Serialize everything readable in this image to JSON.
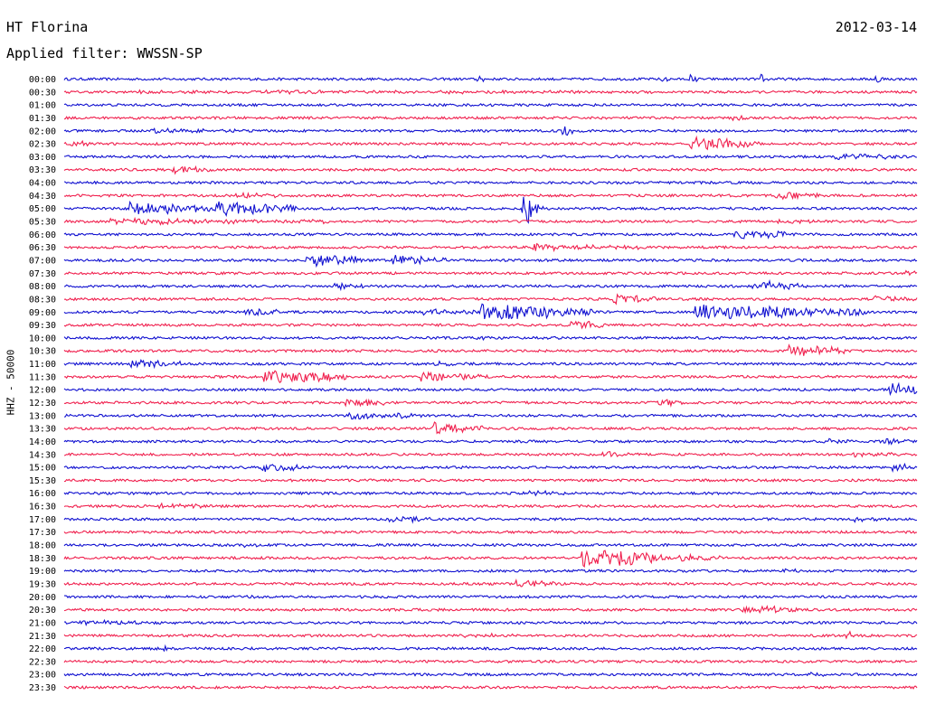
{
  "header": {
    "station": "HT Florina",
    "date": "2012-03-14",
    "filter": "Applied filter: WWSSN-SP"
  },
  "chart_data": {
    "type": "line",
    "title": "HT Florina",
    "subtitle": "Applied filter: WWSSN-SP",
    "date": "2012-03-14",
    "ylabel": "HHZ - 50000",
    "row_interval_minutes": 30,
    "row_labels": [
      "00:00",
      "00:30",
      "01:00",
      "01:30",
      "02:00",
      "02:30",
      "03:00",
      "03:30",
      "04:00",
      "04:30",
      "05:00",
      "05:30",
      "06:00",
      "06:30",
      "07:00",
      "07:30",
      "08:00",
      "08:30",
      "09:00",
      "09:30",
      "10:00",
      "10:30",
      "11:00",
      "11:30",
      "12:00",
      "12:30",
      "13:00",
      "13:30",
      "14:00",
      "14:30",
      "15:00",
      "15:30",
      "16:00",
      "16:30",
      "17:00",
      "17:30",
      "18:00",
      "18:30",
      "19:00",
      "19:30",
      "20:00",
      "20:30",
      "21:00",
      "21:30",
      "22:00",
      "22:30",
      "23:00",
      "23:30"
    ],
    "colors": {
      "even_rows": "#1010d0",
      "odd_rows": "#f0204e"
    },
    "grid": false,
    "events": [
      {
        "row": 0,
        "minute": 14.5,
        "amplitude": 0.8,
        "duration": 0.3
      },
      {
        "row": 0,
        "minute": 21,
        "amplitude": 0.6,
        "duration": 0.3
      },
      {
        "row": 0,
        "minute": 22,
        "amplitude": 0.9,
        "duration": 0.3
      },
      {
        "row": 0,
        "minute": 24.5,
        "amplitude": 0.9,
        "duration": 0.3
      },
      {
        "row": 0,
        "minute": 28.5,
        "amplitude": 1.0,
        "duration": 0.3
      },
      {
        "row": 1,
        "minute": 2,
        "amplitude": 0.2,
        "duration": 20
      },
      {
        "row": 3,
        "minute": 23.5,
        "amplitude": 0.5,
        "duration": 0.5
      },
      {
        "row": 4,
        "minute": 3,
        "amplitude": 0.4,
        "duration": 3
      },
      {
        "row": 4,
        "minute": 17.5,
        "amplitude": 1.2,
        "duration": 0.4
      },
      {
        "row": 5,
        "minute": 0.2,
        "amplitude": 0.6,
        "duration": 0.8
      },
      {
        "row": 5,
        "minute": 22,
        "amplitude": 1.3,
        "duration": 2.5
      },
      {
        "row": 6,
        "minute": 27,
        "amplitude": 0.5,
        "duration": 2.5
      },
      {
        "row": 7,
        "minute": 3.8,
        "amplitude": 0.8,
        "duration": 1.5
      },
      {
        "row": 9,
        "minute": 6,
        "amplitude": 0.4,
        "duration": 2
      },
      {
        "row": 9,
        "minute": 25,
        "amplitude": 0.8,
        "duration": 1.5
      },
      {
        "row": 10,
        "minute": 2.3,
        "amplitude": 1.2,
        "duration": 3
      },
      {
        "row": 10,
        "minute": 5.3,
        "amplitude": 1.3,
        "duration": 3
      },
      {
        "row": 10,
        "minute": 16,
        "amplitude": 0.6,
        "duration": 1.2
      },
      {
        "row": 10,
        "minute": 16.1,
        "amplitude": 3.5,
        "duration": 0.6
      },
      {
        "row": 11,
        "minute": 1.5,
        "amplitude": 0.5,
        "duration": 8
      },
      {
        "row": 11,
        "minute": 25,
        "amplitude": 0.4,
        "duration": 1.5
      },
      {
        "row": 12,
        "minute": 23.5,
        "amplitude": 0.9,
        "duration": 2
      },
      {
        "row": 13,
        "minute": 16.5,
        "amplitude": 0.6,
        "duration": 2.5
      },
      {
        "row": 13,
        "minute": 19,
        "amplitude": 0.4,
        "duration": 1.5
      },
      {
        "row": 14,
        "minute": 8.5,
        "amplitude": 1.4,
        "duration": 2
      },
      {
        "row": 14,
        "minute": 11.5,
        "amplitude": 1.0,
        "duration": 2
      },
      {
        "row": 15,
        "minute": 29.5,
        "amplitude": 0.8,
        "duration": 1.5
      },
      {
        "row": 16,
        "minute": 9.5,
        "amplitude": 0.6,
        "duration": 1
      },
      {
        "row": 16,
        "minute": 24.2,
        "amplitude": 1.0,
        "duration": 2
      },
      {
        "row": 17,
        "minute": 19.3,
        "amplitude": 1.0,
        "duration": 1.5
      },
      {
        "row": 17,
        "minute": 28.5,
        "amplitude": 0.5,
        "duration": 1.5
      },
      {
        "row": 18,
        "minute": 6.3,
        "amplitude": 0.9,
        "duration": 1.2
      },
      {
        "row": 18,
        "minute": 12.5,
        "amplitude": 0.6,
        "duration": 2
      },
      {
        "row": 18,
        "minute": 14.6,
        "amplitude": 1.6,
        "duration": 4
      },
      {
        "row": 18,
        "minute": 22.2,
        "amplitude": 1.5,
        "duration": 6
      },
      {
        "row": 19,
        "minute": 17.8,
        "amplitude": 0.9,
        "duration": 1.2
      },
      {
        "row": 20,
        "minute": 14.5,
        "amplitude": 0.5,
        "duration": 0.5
      },
      {
        "row": 21,
        "minute": 25.5,
        "amplitude": 1.2,
        "duration": 2
      },
      {
        "row": 22,
        "minute": 2.3,
        "amplitude": 0.8,
        "duration": 2
      },
      {
        "row": 22,
        "minute": 13,
        "amplitude": 0.4,
        "duration": 1.5
      },
      {
        "row": 23,
        "minute": 7,
        "amplitude": 1.2,
        "duration": 3
      },
      {
        "row": 23,
        "minute": 12.5,
        "amplitude": 0.8,
        "duration": 2.5
      },
      {
        "row": 24,
        "minute": 29,
        "amplitude": 1.4,
        "duration": 1.5
      },
      {
        "row": 25,
        "minute": 9.8,
        "amplitude": 0.7,
        "duration": 1.5
      },
      {
        "row": 25,
        "minute": 20.8,
        "amplitude": 0.8,
        "duration": 1
      },
      {
        "row": 25,
        "minute": 30.5,
        "amplitude": 0.6,
        "duration": 1.5
      },
      {
        "row": 26,
        "minute": 10,
        "amplitude": 0.8,
        "duration": 1.5
      },
      {
        "row": 26,
        "minute": 11.6,
        "amplitude": 0.7,
        "duration": 1
      },
      {
        "row": 27,
        "minute": 12.9,
        "amplitude": 1.3,
        "duration": 2
      },
      {
        "row": 28,
        "minute": 26.9,
        "amplitude": 0.6,
        "duration": 1
      },
      {
        "row": 28,
        "minute": 28.8,
        "amplitude": 0.6,
        "duration": 1
      },
      {
        "row": 29,
        "minute": 18.9,
        "amplitude": 0.5,
        "duration": 1.5
      },
      {
        "row": 29,
        "minute": 27.7,
        "amplitude": 0.4,
        "duration": 2
      },
      {
        "row": 30,
        "minute": 6.9,
        "amplitude": 0.9,
        "duration": 1.5
      },
      {
        "row": 30,
        "minute": 29.1,
        "amplitude": 0.8,
        "duration": 0.8
      },
      {
        "row": 32,
        "minute": 16.1,
        "amplitude": 0.4,
        "duration": 1.5
      },
      {
        "row": 33,
        "minute": 3.3,
        "amplitude": 0.6,
        "duration": 1.5
      },
      {
        "row": 34,
        "minute": 11.4,
        "amplitude": 0.6,
        "duration": 1.5
      },
      {
        "row": 34,
        "minute": 27.7,
        "amplitude": 0.4,
        "duration": 1
      },
      {
        "row": 36,
        "minute": 6.3,
        "amplitude": 0.3,
        "duration": 0.5
      },
      {
        "row": 37,
        "minute": 18.2,
        "amplitude": 2.0,
        "duration": 3
      },
      {
        "row": 37,
        "minute": 21.6,
        "amplitude": 0.8,
        "duration": 1.5
      },
      {
        "row": 38,
        "minute": 25.2,
        "amplitude": 0.6,
        "duration": 1
      },
      {
        "row": 39,
        "minute": 15.9,
        "amplitude": 0.7,
        "duration": 1.5
      },
      {
        "row": 40,
        "minute": 6.3,
        "amplitude": 0.4,
        "duration": 0.5
      },
      {
        "row": 41,
        "minute": 23.8,
        "amplitude": 0.8,
        "duration": 2
      },
      {
        "row": 42,
        "minute": 0.5,
        "amplitude": 0.3,
        "duration": 4
      },
      {
        "row": 43,
        "minute": 14,
        "amplitude": 0.3,
        "duration": 2
      },
      {
        "row": 44,
        "minute": 3.5,
        "amplitude": 0.9,
        "duration": 0.3
      },
      {
        "row": 43,
        "minute": 27.5,
        "amplitude": 0.9,
        "duration": 0.3
      },
      {
        "row": 46,
        "minute": 26.2,
        "amplitude": 0.3,
        "duration": 1
      }
    ]
  }
}
